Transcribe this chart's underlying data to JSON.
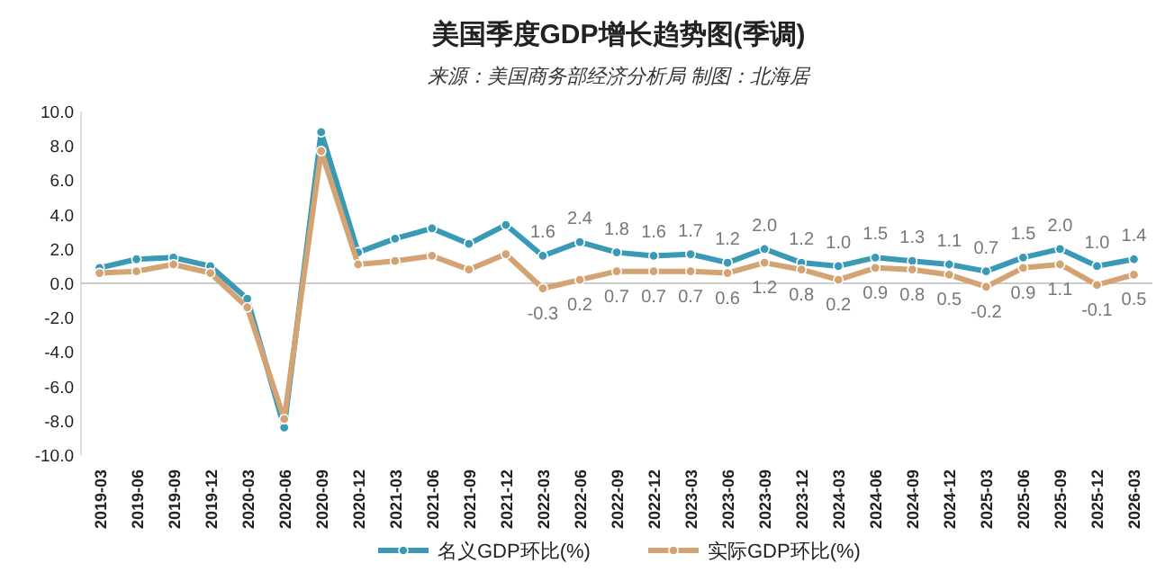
{
  "chart_data": {
    "type": "line",
    "title": "美国季度GDP增长趋势图(季调)",
    "subtitle": "来源：美国商务部经济分析局  制图：北海居",
    "categories": [
      "2019-03",
      "2019-06",
      "2019-09",
      "2019-12",
      "2020-03",
      "2020-06",
      "2020-09",
      "2020-12",
      "2021-03",
      "2021-06",
      "2021-09",
      "2021-12",
      "2022-03",
      "2022-06",
      "2022-09",
      "2022-12",
      "2023-03",
      "2023-06",
      "2023-09",
      "2023-12",
      "2024-03",
      "2024-06",
      "2024-09",
      "2024-12",
      "2025-03",
      "2025-06",
      "2025-09",
      "2025-12",
      "2026-03"
    ],
    "series": [
      {
        "name": "名义GDP环比(%)",
        "color": "#3a9ab5",
        "values": [
          0.9,
          1.4,
          1.5,
          1.0,
          -0.9,
          -8.4,
          8.8,
          1.8,
          2.6,
          3.2,
          2.3,
          3.4,
          1.6,
          2.4,
          1.8,
          1.6,
          1.7,
          1.2,
          2.0,
          1.2,
          1.0,
          1.5,
          1.3,
          1.1,
          0.7,
          1.5,
          2.0,
          1.0,
          1.4
        ],
        "value_labels": [
          null,
          null,
          null,
          null,
          null,
          null,
          null,
          null,
          null,
          null,
          null,
          null,
          "1.6",
          "2.4",
          "1.8",
          "1.6",
          "1.7",
          "1.2",
          "2.0",
          "1.2",
          "1.0",
          "1.5",
          "1.3",
          "1.1",
          "0.7",
          "1.5",
          "2.0",
          "1.0",
          "1.4"
        ]
      },
      {
        "name": "实际GDP环比(%)",
        "color": "#d4a373",
        "values": [
          0.6,
          0.7,
          1.1,
          0.6,
          -1.4,
          -7.9,
          7.7,
          1.1,
          1.3,
          1.6,
          0.8,
          1.7,
          -0.3,
          0.2,
          0.7,
          0.7,
          0.7,
          0.6,
          1.2,
          0.8,
          0.2,
          0.9,
          0.8,
          0.5,
          -0.2,
          0.9,
          1.1,
          -0.1,
          0.5
        ],
        "value_labels": [
          null,
          null,
          null,
          null,
          null,
          null,
          null,
          null,
          null,
          null,
          null,
          null,
          "-0.3",
          "0.2",
          "0.7",
          "0.7",
          "0.7",
          "0.6",
          "1.2",
          "0.8",
          "0.2",
          "0.9",
          "0.8",
          "0.5",
          "-0.2",
          "0.9",
          "1.1",
          "-0.1",
          "0.5"
        ]
      }
    ],
    "ylim": [
      -10,
      10
    ],
    "yticks": [
      {
        "value": -10,
        "label": "-10.0"
      },
      {
        "value": -8,
        "label": "-8.0"
      },
      {
        "value": -6,
        "label": "-6.0"
      },
      {
        "value": -4,
        "label": "-4.0"
      },
      {
        "value": -2,
        "label": "-2.0"
      },
      {
        "value": 0,
        "label": "0.0"
      },
      {
        "value": 2,
        "label": "2.0"
      },
      {
        "value": 4,
        "label": "4.0"
      },
      {
        "value": 6,
        "label": "6.0"
      },
      {
        "value": 8,
        "label": "8.0"
      },
      {
        "value": 10,
        "label": "10.0"
      }
    ],
    "ref_lines": [
      {
        "axis": "y",
        "value": 0,
        "color": "#cccccc"
      }
    ],
    "legend": "bottom",
    "marker": "circle",
    "line_style": "solid"
  }
}
